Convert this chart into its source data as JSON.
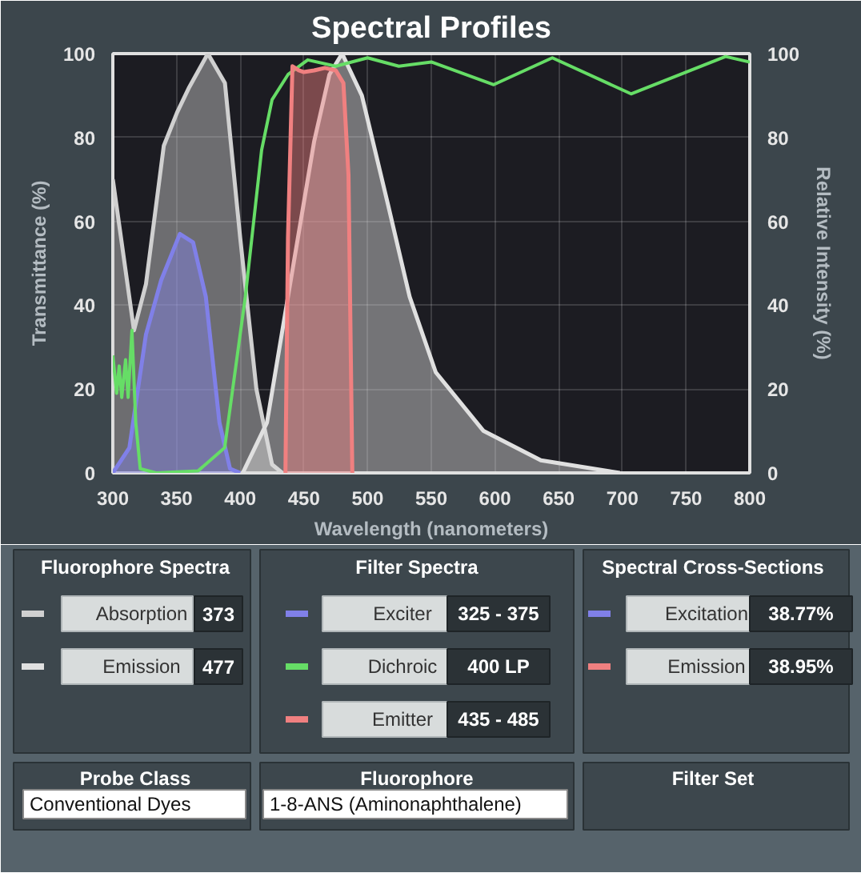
{
  "chart_data": [
    {
      "type": "area",
      "title": "Spectral Profiles",
      "xlabel": "Wavelength (nanometers)",
      "ylabel": "Transmittance (%)",
      "y2label": "Relative Intensity (%)",
      "xlim": [
        300,
        800
      ],
      "xticks": [
        300,
        350,
        400,
        450,
        500,
        550,
        600,
        650,
        700,
        750,
        800
      ],
      "ylim": [
        0,
        100
      ],
      "yticks": [
        0,
        20,
        40,
        60,
        80,
        100
      ],
      "y2lim": [
        0,
        100
      ],
      "y2ticks": [
        0,
        20,
        40,
        60,
        80,
        100
      ],
      "grid": true,
      "series": [
        {
          "type": "area",
          "color": "#d0d0d0",
          "x": [
            300,
            316.6,
            326,
            340,
            350.5,
            360,
            374.6,
            388,
            400,
            412.7,
            425,
            433
          ],
          "values": [
            70,
            34,
            45,
            78,
            86,
            92,
            100,
            93,
            56,
            20,
            2,
            0
          ]
        },
        {
          "type": "area",
          "color": "#e0e0e0",
          "x": [
            402,
            421,
            437.5,
            458,
            470,
            480,
            495.5,
            516,
            533,
            553.5,
            591,
            636,
            698
          ],
          "values": [
            0,
            12,
            42,
            79,
            95,
            100,
            90,
            64,
            42,
            24,
            10,
            3,
            0
          ]
        },
        {
          "type": "area",
          "color": "#8080e8",
          "x": [
            300,
            313,
            326,
            338,
            352.6,
            363,
            373,
            383.7,
            392,
            400
          ],
          "values": [
            0,
            6,
            33,
            46,
            57,
            55,
            42,
            12,
            1,
            0
          ]
        },
        {
          "type": "line",
          "color": "#66dd66",
          "x": [
            300,
            303,
            305,
            307,
            310,
            312,
            315,
            318,
            321.5,
            334,
            367,
            387.8,
            404,
            416.8,
            425,
            437.5,
            453,
            475,
            500,
            524.5,
            550,
            599,
            645,
            706.8,
            781,
            800
          ],
          "values": [
            28,
            19,
            25.5,
            18,
            27,
            18,
            34,
            12,
            1,
            0,
            0.5,
            6,
            42,
            77,
            89,
            95,
            98.5,
            97,
            99,
            97,
            98,
            92.6,
            99,
            90.4,
            99.3,
            98
          ]
        },
        {
          "type": "area",
          "color": "#f08080",
          "x": [
            435.5,
            437.5,
            441,
            446,
            450,
            458,
            466.5,
            475,
            481,
            485,
            488
          ],
          "values": [
            0,
            56,
            97,
            96,
            95.6,
            96,
            96.6,
            96,
            93,
            71,
            0
          ]
        }
      ]
    },
    {
      "type": "other",
      "annotations": [
        "Fluorophore Spectra",
        "Absorption",
        "373",
        "Emission",
        "477",
        "Filter Spectra",
        "Exciter",
        "325 - 375",
        "Dichroic",
        "400 LP",
        "Emitter",
        "435 - 485",
        "Spectral Cross-Sections",
        "Excitation",
        "38.77%",
        "Emission",
        "38.95%",
        "Probe Class",
        "Conventional Dyes",
        "Fluorophore",
        "1-8-ANS (Aminonaphthalene)",
        "Filter Set"
      ]
    }
  ]
}
